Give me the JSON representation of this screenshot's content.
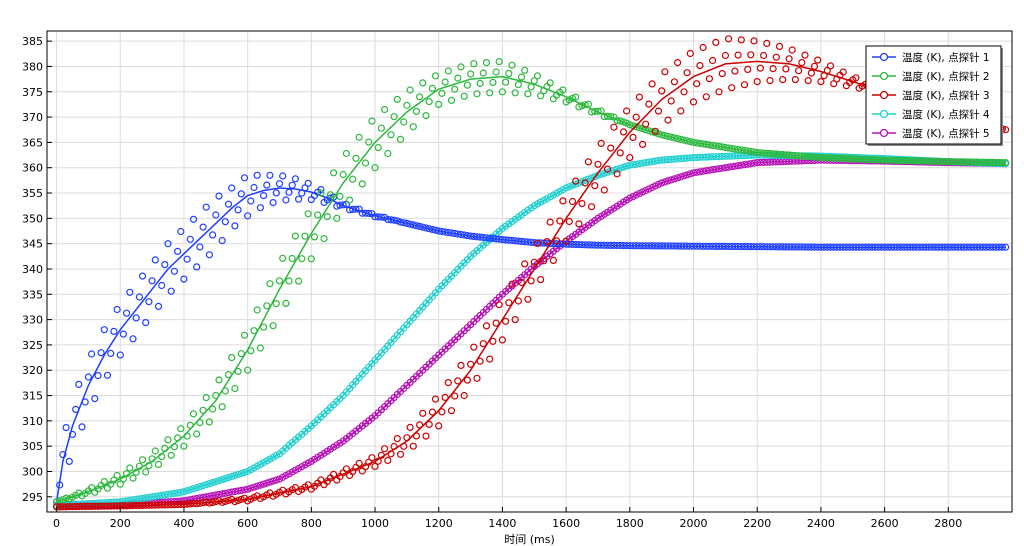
{
  "toolbar": {
    "icon": "export-image-icon"
  },
  "chart_data": {
    "type": "line",
    "title": "",
    "xlabel": "时间 (ms)",
    "ylabel": "",
    "xlim": [
      -30,
      3000
    ],
    "ylim": [
      292,
      387
    ],
    "x_ticks": [
      0,
      200,
      400,
      600,
      800,
      1000,
      1200,
      1400,
      1600,
      1800,
      2000,
      2200,
      2400,
      2600,
      2800
    ],
    "y_ticks": [
      295,
      300,
      305,
      310,
      315,
      320,
      325,
      330,
      335,
      340,
      345,
      350,
      355,
      360,
      365,
      370,
      375,
      380,
      385
    ],
    "grid": true,
    "legend": "top-right",
    "marker": "open-circle",
    "series": [
      {
        "name": "温度 (K), 点探针 1",
        "color": "#1f3fff",
        "x": [
          0,
          20,
          50,
          100,
          150,
          200,
          250,
          300,
          350,
          400,
          450,
          500,
          550,
          600,
          650,
          700,
          750,
          800,
          850,
          900,
          950,
          1000,
          1100,
          1200,
          1300,
          1400,
          1500,
          1600,
          1700,
          1800,
          2000,
          2200,
          2400,
          2600,
          2800,
          2980
        ],
        "y": [
          294,
          302,
          309,
          317,
          323,
          328,
          332,
          336,
          340,
          343,
          346,
          349,
          352,
          354.5,
          355.5,
          356,
          355.8,
          355.2,
          354,
          352.5,
          351.5,
          350.5,
          349,
          347.5,
          346.5,
          345.8,
          345.2,
          344.9,
          344.7,
          344.6,
          344.5,
          344.4,
          344.3,
          344.3,
          344.3,
          344.3
        ],
        "band": [
          0,
          4,
          5,
          5,
          5,
          5,
          5,
          5,
          5,
          5,
          5,
          5,
          4,
          4,
          3,
          2.5,
          2,
          1.5,
          1,
          0.5,
          0.3,
          0.2,
          0,
          0,
          0,
          0,
          0,
          0,
          0,
          0,
          0,
          0,
          0,
          0,
          0,
          0
        ]
      },
      {
        "name": "温度 (K), 点探针 2",
        "color": "#2db83d",
        "x": [
          0,
          100,
          200,
          300,
          400,
          500,
          600,
          700,
          800,
          900,
          1000,
          1100,
          1200,
          1300,
          1400,
          1500,
          1600,
          1700,
          1800,
          1900,
          2000,
          2200,
          2400,
          2600,
          2800,
          2980
        ],
        "y": [
          294,
          296,
          298.5,
          302,
          307,
          314,
          324,
          336,
          347,
          357,
          365,
          371,
          375.5,
          377.5,
          378,
          376.5,
          374,
          371,
          368.5,
          366.5,
          365,
          363,
          362,
          361.5,
          361.2,
          361
        ],
        "band": [
          0,
          0.5,
          1,
          1.5,
          2,
          3,
          4,
          5,
          5,
          5,
          5,
          4,
          3,
          3,
          3,
          2,
          1,
          0.5,
          0,
          0,
          0,
          0,
          0,
          0,
          0,
          0
        ]
      },
      {
        "name": "温度 (K), 点探针 3",
        "color": "#cc0000",
        "x": [
          0,
          200,
          400,
          600,
          800,
          1000,
          1100,
          1200,
          1300,
          1400,
          1500,
          1600,
          1700,
          1800,
          1900,
          2000,
          2100,
          2200,
          2300,
          2400,
          2500,
          2600,
          2700,
          2800,
          2900,
          2980
        ],
        "y": [
          293,
          293.2,
          293.5,
          294.5,
          297,
          302,
          306,
          312,
          320,
          330,
          340,
          350,
          359,
          367,
          373.5,
          378,
          380.5,
          381,
          380.5,
          379,
          377,
          375,
          373,
          371,
          369,
          367.5
        ],
        "band": [
          0,
          0,
          0,
          0.3,
          0.5,
          1,
          2,
          3,
          3.5,
          4,
          4,
          4.5,
          5,
          5,
          5,
          5,
          5,
          4,
          3,
          2,
          1,
          0.5,
          0,
          0,
          0,
          0
        ]
      },
      {
        "name": "温度 (K), 点探针 4",
        "color": "#1ecfcf",
        "x": [
          0,
          200,
          400,
          600,
          700,
          800,
          900,
          1000,
          1100,
          1200,
          1300,
          1400,
          1500,
          1600,
          1700,
          1800,
          1900,
          2000,
          2200,
          2400,
          2600,
          2800,
          2980
        ],
        "y": [
          293.3,
          294,
          296,
          300,
          303.5,
          309,
          315,
          322,
          329,
          336,
          342.5,
          348,
          352.5,
          356,
          358.5,
          360.5,
          361.5,
          362,
          362.5,
          362.3,
          361.8,
          361.2,
          360.8
        ],
        "band": []
      },
      {
        "name": "温度 (K), 点探针 5",
        "color": "#b510b5",
        "x": [
          0,
          200,
          400,
          600,
          700,
          800,
          900,
          1000,
          1100,
          1200,
          1300,
          1400,
          1500,
          1600,
          1700,
          1800,
          1900,
          2000,
          2200,
          2400,
          2600,
          2800,
          2980
        ],
        "y": [
          293.1,
          293.4,
          294.2,
          296.5,
          298.5,
          302,
          306,
          311,
          317,
          323,
          329,
          335,
          340.5,
          345.5,
          350,
          354,
          357,
          359,
          361,
          361.5,
          361.3,
          361,
          360.8
        ],
        "band": []
      }
    ]
  }
}
